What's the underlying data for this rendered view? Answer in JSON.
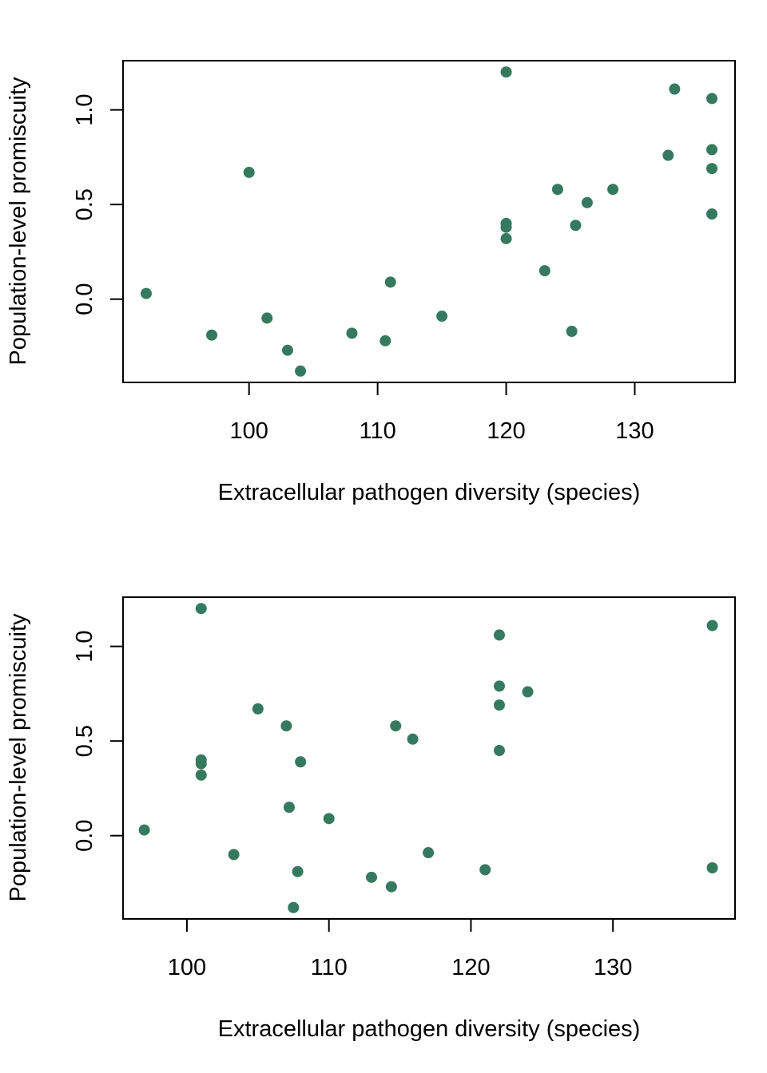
{
  "colors": {
    "point": "#357a5f",
    "axis": "#000000",
    "background": "#ffffff"
  },
  "chart_data": [
    {
      "type": "scatter",
      "title": "",
      "xlabel": "Extracellular pathogen diversity (species)",
      "ylabel": "Population-level promiscuity",
      "xlim": [
        90.2,
        137.8
      ],
      "ylim": [
        -0.44,
        1.26
      ],
      "xticks": [
        100,
        110,
        120,
        130
      ],
      "xtick_labels": [
        "100",
        "110",
        "120",
        "130"
      ],
      "yticks": [
        0.0,
        0.5,
        1.0
      ],
      "ytick_labels": [
        "0.0",
        "0.5",
        "1.0"
      ],
      "grid": false,
      "points": [
        {
          "x": 92,
          "y": 0.03
        },
        {
          "x": 97.1,
          "y": -0.19
        },
        {
          "x": 100,
          "y": 0.67
        },
        {
          "x": 101.4,
          "y": -0.1
        },
        {
          "x": 103,
          "y": -0.27
        },
        {
          "x": 104,
          "y": -0.38
        },
        {
          "x": 108,
          "y": -0.18
        },
        {
          "x": 110.6,
          "y": -0.22
        },
        {
          "x": 111,
          "y": 0.09
        },
        {
          "x": 115,
          "y": -0.09
        },
        {
          "x": 120,
          "y": 1.2
        },
        {
          "x": 120,
          "y": 0.4
        },
        {
          "x": 120,
          "y": 0.38
        },
        {
          "x": 120,
          "y": 0.32
        },
        {
          "x": 123,
          "y": 0.15
        },
        {
          "x": 124,
          "y": 0.58
        },
        {
          "x": 125.1,
          "y": -0.17
        },
        {
          "x": 125.4,
          "y": 0.39
        },
        {
          "x": 126.3,
          "y": 0.51
        },
        {
          "x": 128.3,
          "y": 0.58
        },
        {
          "x": 132.6,
          "y": 0.76
        },
        {
          "x": 133.1,
          "y": 1.11
        },
        {
          "x": 136,
          "y": 1.06
        },
        {
          "x": 136,
          "y": 0.79
        },
        {
          "x": 136,
          "y": 0.69
        },
        {
          "x": 136,
          "y": 0.45
        }
      ]
    },
    {
      "type": "scatter",
      "title": "",
      "xlabel": "Extracellular pathogen diversity (species)",
      "ylabel": "Population-level promiscuity",
      "xlim": [
        95.5,
        138.6
      ],
      "ylim": [
        -0.44,
        1.26
      ],
      "xticks": [
        100,
        110,
        120,
        130
      ],
      "xtick_labels": [
        "100",
        "110",
        "120",
        "130"
      ],
      "yticks": [
        0.0,
        0.5,
        1.0
      ],
      "ytick_labels": [
        "0.0",
        "0.5",
        "1.0"
      ],
      "grid": false,
      "points": [
        {
          "x": 97,
          "y": 0.03
        },
        {
          "x": 101,
          "y": 1.2
        },
        {
          "x": 101,
          "y": 0.4
        },
        {
          "x": 101,
          "y": 0.38
        },
        {
          "x": 101,
          "y": 0.32
        },
        {
          "x": 103.3,
          "y": -0.1
        },
        {
          "x": 105,
          "y": 0.67
        },
        {
          "x": 107,
          "y": 0.58
        },
        {
          "x": 107.2,
          "y": 0.15
        },
        {
          "x": 107.5,
          "y": -0.38
        },
        {
          "x": 107.8,
          "y": -0.19
        },
        {
          "x": 108,
          "y": 0.39
        },
        {
          "x": 110,
          "y": 0.09
        },
        {
          "x": 113,
          "y": -0.22
        },
        {
          "x": 114.4,
          "y": -0.27
        },
        {
          "x": 114.7,
          "y": 0.58
        },
        {
          "x": 115.9,
          "y": 0.51
        },
        {
          "x": 117,
          "y": -0.09
        },
        {
          "x": 121,
          "y": -0.18
        },
        {
          "x": 122,
          "y": 1.06
        },
        {
          "x": 122,
          "y": 0.79
        },
        {
          "x": 122,
          "y": 0.69
        },
        {
          "x": 122,
          "y": 0.45
        },
        {
          "x": 124,
          "y": 0.76
        },
        {
          "x": 137,
          "y": 1.11
        },
        {
          "x": 137,
          "y": -0.17
        }
      ]
    }
  ]
}
